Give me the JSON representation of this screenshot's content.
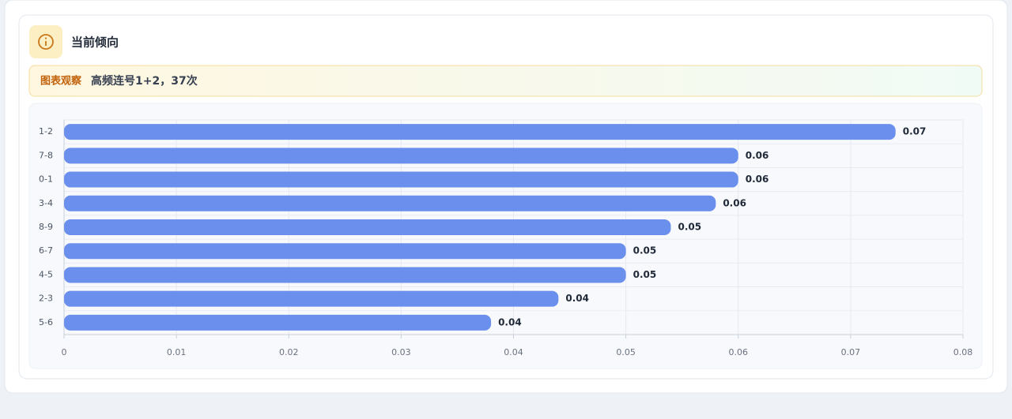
{
  "card": {
    "title": "当前倾向",
    "observation_label": "图表观察",
    "observation_text": "高频连号1+2，37次"
  },
  "chart_data": {
    "type": "bar",
    "orientation": "horizontal",
    "categories": [
      "1-2",
      "7-8",
      "0-1",
      "3-4",
      "8-9",
      "6-7",
      "4-5",
      "2-3",
      "5-6"
    ],
    "values": [
      0.074,
      0.06,
      0.06,
      0.058,
      0.054,
      0.05,
      0.05,
      0.044,
      0.038
    ],
    "value_labels": [
      "0.07",
      "0.06",
      "0.06",
      "0.06",
      "0.05",
      "0.05",
      "0.05",
      "0.04",
      "0.04"
    ],
    "color": "#6b8fec",
    "xlim": [
      0,
      0.08
    ],
    "xticks": [
      0,
      0.01,
      0.02,
      0.03,
      0.04,
      0.05,
      0.06,
      0.07,
      0.08
    ],
    "grid": true
  }
}
